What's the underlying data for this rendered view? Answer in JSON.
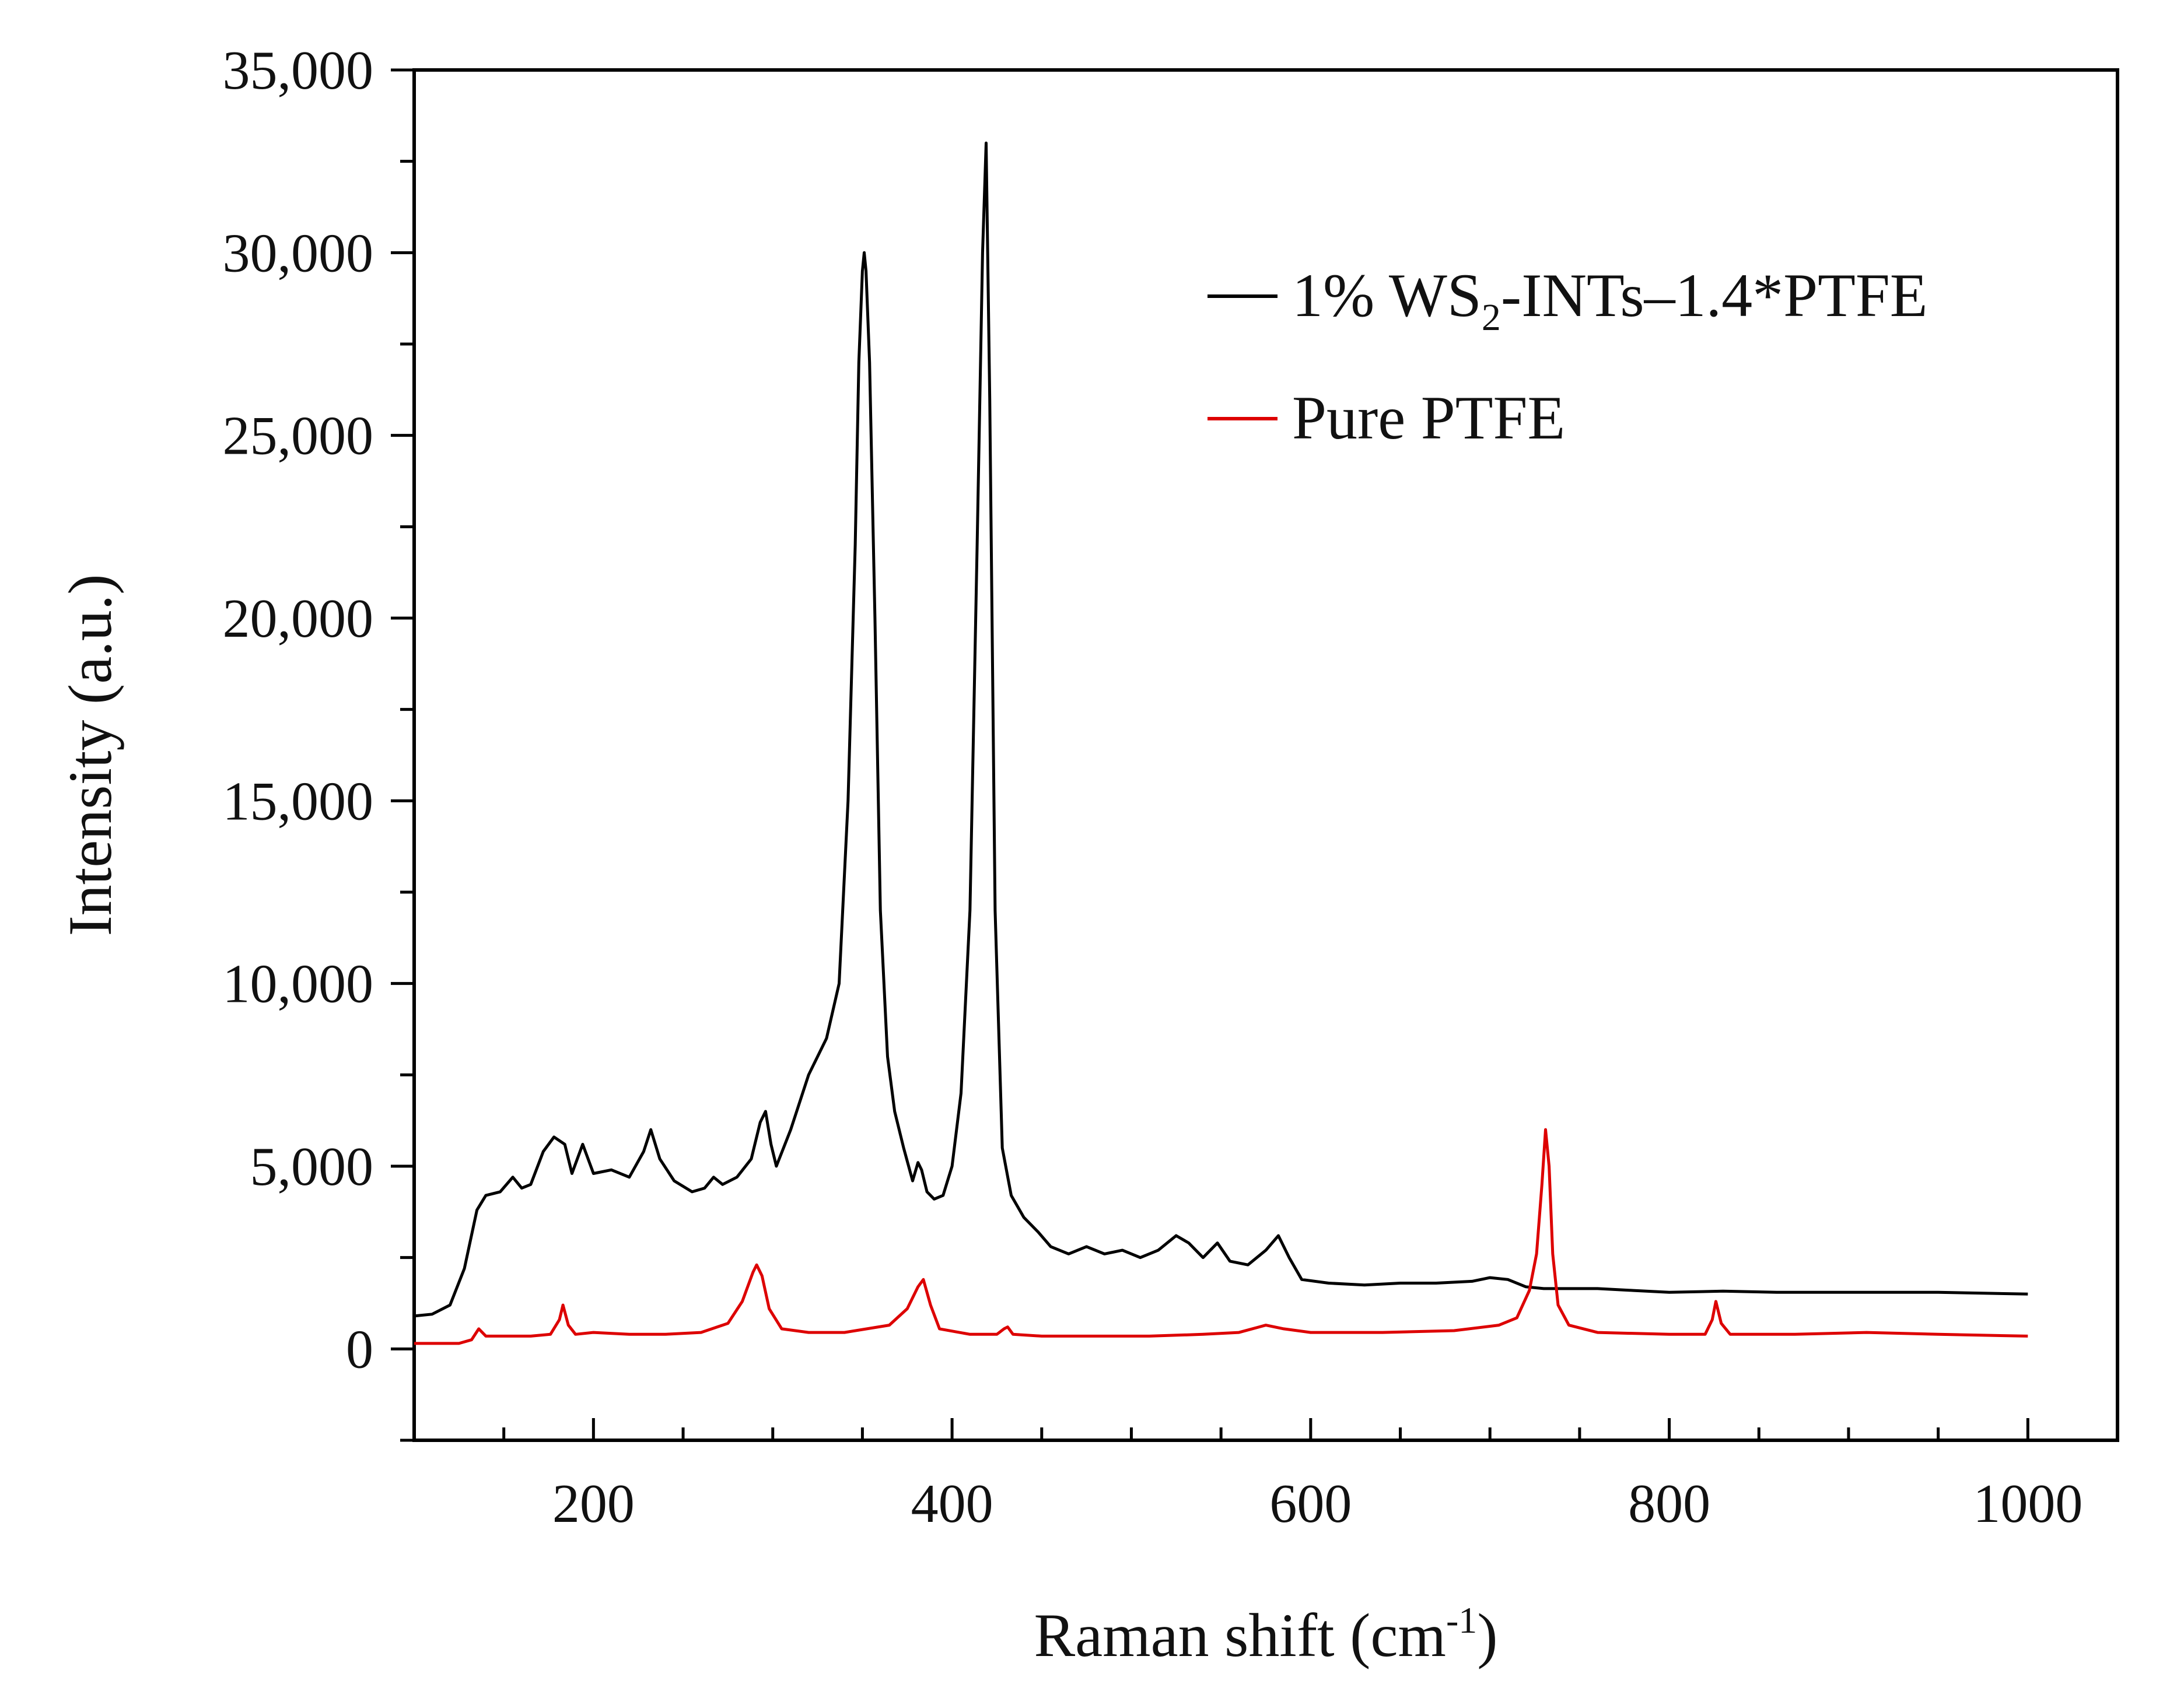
{
  "chart_data": {
    "type": "line",
    "title": "",
    "xlabel": "Raman shift (cm",
    "xlabel_sup": "-1",
    "xlabel_close": ")",
    "ylabel": "Intensity (a.u.)",
    "xlim": [
      100,
      1050
    ],
    "ylim": [
      -2500,
      35000
    ],
    "x_ticks": [
      200,
      400,
      600,
      800,
      1000
    ],
    "x_tick_labels": [
      "200",
      "400",
      "600",
      "800",
      "1000"
    ],
    "y_ticks": [
      0,
      5000,
      10000,
      15000,
      20000,
      25000,
      30000,
      35000
    ],
    "y_tick_labels": [
      "0",
      "5,000",
      "10,000",
      "15,000",
      "20,000",
      "25,000",
      "30,000",
      "35,000"
    ],
    "grid": false,
    "legend_position": "top-right",
    "series": [
      {
        "name": "1% WS2-INTs–1.4*PTFE",
        "legend_parts": [
          "1% WS",
          "2",
          "-INTs–1.4*PTFE"
        ],
        "color": "#000000",
        "points": [
          [
            100,
            900
          ],
          [
            110,
            950
          ],
          [
            120,
            1200
          ],
          [
            128,
            2200
          ],
          [
            135,
            3800
          ],
          [
            140,
            4200
          ],
          [
            148,
            4300
          ],
          [
            155,
            4700
          ],
          [
            160,
            4400
          ],
          [
            165,
            4500
          ],
          [
            172,
            5400
          ],
          [
            178,
            5800
          ],
          [
            184,
            5600
          ],
          [
            188,
            4800
          ],
          [
            194,
            5600
          ],
          [
            200,
            4800
          ],
          [
            210,
            4900
          ],
          [
            220,
            4700
          ],
          [
            228,
            5400
          ],
          [
            232,
            6000
          ],
          [
            237,
            5200
          ],
          [
            245,
            4600
          ],
          [
            255,
            4300
          ],
          [
            262,
            4400
          ],
          [
            267,
            4700
          ],
          [
            272,
            4500
          ],
          [
            280,
            4700
          ],
          [
            288,
            5200
          ],
          [
            293,
            6200
          ],
          [
            296,
            6500
          ],
          [
            299,
            5600
          ],
          [
            302,
            5000
          ],
          [
            310,
            6000
          ],
          [
            320,
            7500
          ],
          [
            330,
            8500
          ],
          [
            337,
            10000
          ],
          [
            342,
            15000
          ],
          [
            346,
            22000
          ],
          [
            348,
            27000
          ],
          [
            350,
            29500
          ],
          [
            351,
            30000
          ],
          [
            352,
            29500
          ],
          [
            354,
            27000
          ],
          [
            357,
            20000
          ],
          [
            360,
            12000
          ],
          [
            364,
            8000
          ],
          [
            368,
            6500
          ],
          [
            373,
            5500
          ],
          [
            378,
            4600
          ],
          [
            381,
            5100
          ],
          [
            383,
            4900
          ],
          [
            386,
            4300
          ],
          [
            390,
            4100
          ],
          [
            395,
            4200
          ],
          [
            400,
            5000
          ],
          [
            405,
            7000
          ],
          [
            410,
            12000
          ],
          [
            414,
            22000
          ],
          [
            417,
            30000
          ],
          [
            419,
            33000
          ],
          [
            421,
            26000
          ],
          [
            424,
            12000
          ],
          [
            428,
            5500
          ],
          [
            433,
            4200
          ],
          [
            440,
            3600
          ],
          [
            448,
            3200
          ],
          [
            455,
            2800
          ],
          [
            465,
            2600
          ],
          [
            475,
            2800
          ],
          [
            485,
            2600
          ],
          [
            495,
            2700
          ],
          [
            505,
            2500
          ],
          [
            515,
            2700
          ],
          [
            525,
            3100
          ],
          [
            532,
            2900
          ],
          [
            540,
            2500
          ],
          [
            548,
            2900
          ],
          [
            555,
            2400
          ],
          [
            565,
            2300
          ],
          [
            575,
            2700
          ],
          [
            582,
            3100
          ],
          [
            588,
            2500
          ],
          [
            595,
            1900
          ],
          [
            610,
            1800
          ],
          [
            630,
            1750
          ],
          [
            650,
            1800
          ],
          [
            670,
            1800
          ],
          [
            690,
            1850
          ],
          [
            700,
            1950
          ],
          [
            710,
            1900
          ],
          [
            720,
            1700
          ],
          [
            730,
            1650
          ],
          [
            745,
            1650
          ],
          [
            760,
            1650
          ],
          [
            780,
            1600
          ],
          [
            800,
            1550
          ],
          [
            830,
            1580
          ],
          [
            860,
            1550
          ],
          [
            900,
            1550
          ],
          [
            950,
            1550
          ],
          [
            1000,
            1500
          ]
        ]
      },
      {
        "name": "Pure PTFE",
        "color": "#dd0000",
        "points": [
          [
            100,
            150
          ],
          [
            125,
            150
          ],
          [
            132,
            250
          ],
          [
            136,
            550
          ],
          [
            140,
            350
          ],
          [
            150,
            350
          ],
          [
            165,
            350
          ],
          [
            176,
            400
          ],
          [
            181,
            800
          ],
          [
            183,
            1200
          ],
          [
            186,
            650
          ],
          [
            190,
            400
          ],
          [
            200,
            450
          ],
          [
            220,
            400
          ],
          [
            240,
            400
          ],
          [
            260,
            450
          ],
          [
            275,
            700
          ],
          [
            283,
            1300
          ],
          [
            289,
            2100
          ],
          [
            291,
            2300
          ],
          [
            294,
            2000
          ],
          [
            298,
            1100
          ],
          [
            305,
            550
          ],
          [
            320,
            450
          ],
          [
            340,
            450
          ],
          [
            365,
            650
          ],
          [
            375,
            1100
          ],
          [
            381,
            1700
          ],
          [
            384,
            1900
          ],
          [
            388,
            1200
          ],
          [
            393,
            550
          ],
          [
            410,
            400
          ],
          [
            425,
            400
          ],
          [
            429,
            550
          ],
          [
            431,
            600
          ],
          [
            434,
            400
          ],
          [
            450,
            350
          ],
          [
            480,
            350
          ],
          [
            510,
            350
          ],
          [
            540,
            400
          ],
          [
            560,
            450
          ],
          [
            575,
            650
          ],
          [
            585,
            550
          ],
          [
            600,
            450
          ],
          [
            640,
            450
          ],
          [
            680,
            500
          ],
          [
            705,
            650
          ],
          [
            715,
            850
          ],
          [
            722,
            1600
          ],
          [
            726,
            2600
          ],
          [
            729,
            4500
          ],
          [
            731,
            6000
          ],
          [
            733,
            5000
          ],
          [
            735,
            2600
          ],
          [
            738,
            1200
          ],
          [
            744,
            650
          ],
          [
            760,
            450
          ],
          [
            800,
            400
          ],
          [
            820,
            400
          ],
          [
            824,
            800
          ],
          [
            826,
            1300
          ],
          [
            829,
            700
          ],
          [
            834,
            400
          ],
          [
            870,
            400
          ],
          [
            910,
            450
          ],
          [
            950,
            400
          ],
          [
            1000,
            350
          ]
        ]
      }
    ]
  }
}
